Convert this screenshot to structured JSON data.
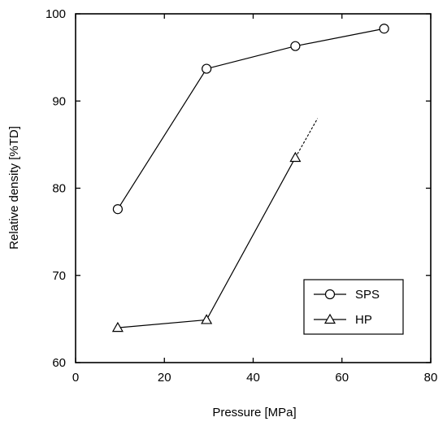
{
  "chart_data": {
    "type": "line",
    "xlabel": "Pressure [MPa]",
    "ylabel": "Relative density [%TD]",
    "xlim": [
      0,
      80
    ],
    "ylim": [
      60,
      100
    ],
    "xticks": [
      0,
      20,
      40,
      60,
      80
    ],
    "yticks": [
      60,
      70,
      80,
      90,
      100
    ],
    "grid": false,
    "legend_position": "bottom-right",
    "series": [
      {
        "name": "SPS",
        "marker": "circle",
        "x": [
          9.5,
          29.5,
          49.5,
          69.5
        ],
        "y": [
          77.6,
          93.7,
          96.3,
          98.3
        ]
      },
      {
        "name": "HP",
        "marker": "triangle",
        "x": [
          9.5,
          29.5,
          49.5
        ],
        "y": [
          64.0,
          64.9,
          83.5
        ],
        "extrapolation": {
          "x": [
            49.5,
            54.5
          ],
          "y": [
            83.5,
            88.0
          ]
        }
      }
    ]
  }
}
